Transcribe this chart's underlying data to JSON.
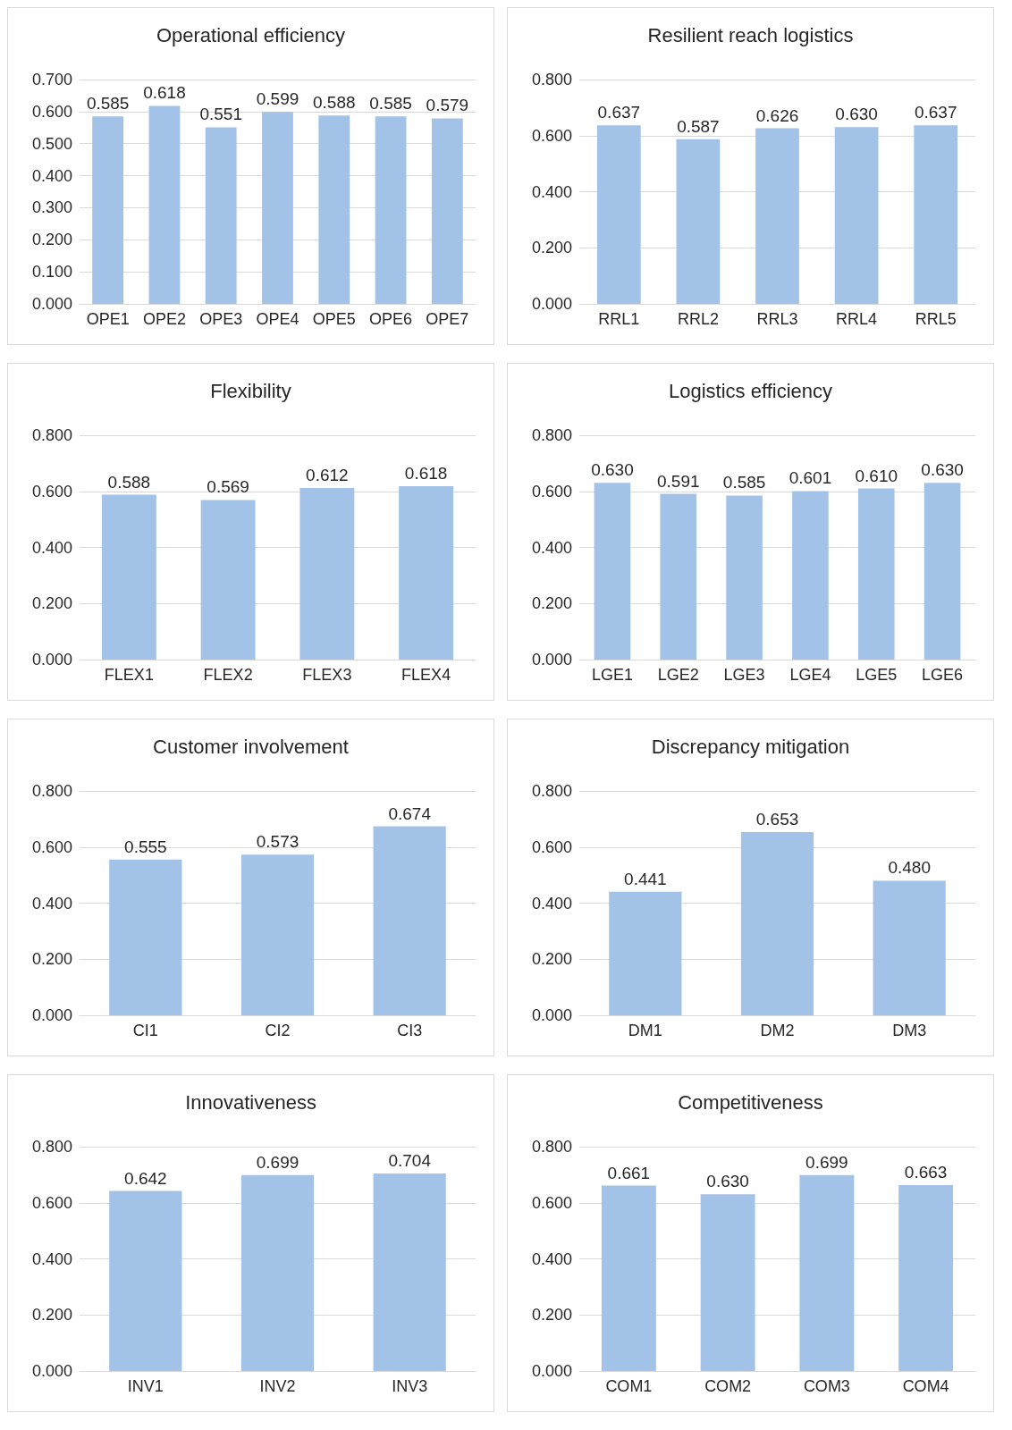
{
  "chart_data": [
    {
      "type": "bar",
      "title": "Operational efficiency",
      "categories": [
        "OPE1",
        "OPE2",
        "OPE3",
        "OPE4",
        "OPE5",
        "OPE6",
        "OPE7"
      ],
      "values": [
        0.585,
        0.618,
        0.551,
        0.599,
        0.588,
        0.585,
        0.579
      ],
      "value_labels": [
        "0.585",
        "0.618",
        "0.551",
        "0.599",
        "0.588",
        "0.585",
        "0.579"
      ],
      "color": "#a3c2e8",
      "ylim": [
        0,
        0.7
      ],
      "yticks": [
        {
          "value": 0,
          "label": "0.000"
        },
        {
          "value": 0.1,
          "label": "0.100"
        },
        {
          "value": 0.2,
          "label": "0.200"
        },
        {
          "value": 0.3,
          "label": "0.300"
        },
        {
          "value": 0.4,
          "label": "0.400"
        },
        {
          "value": 0.5,
          "label": "0.500"
        },
        {
          "value": 0.6,
          "label": "0.600"
        },
        {
          "value": 0.7,
          "label": "0.700"
        }
      ],
      "grid": "y"
    },
    {
      "type": "bar",
      "title": "Resilient reach logistics",
      "categories": [
        "RRL1",
        "RRL2",
        "RRL3",
        "RRL4",
        "RRL5"
      ],
      "values": [
        0.637,
        0.587,
        0.626,
        0.63,
        0.637
      ],
      "value_labels": [
        "0.637",
        "0.587",
        "0.626",
        "0.630",
        "0.637"
      ],
      "color": "#a3c2e8",
      "ylim": [
        0,
        0.8
      ],
      "yticks": [
        {
          "value": 0,
          "label": "0.000"
        },
        {
          "value": 0.2,
          "label": "0.200"
        },
        {
          "value": 0.4,
          "label": "0.400"
        },
        {
          "value": 0.6,
          "label": "0.600"
        },
        {
          "value": 0.8,
          "label": "0.800"
        }
      ],
      "grid": "y"
    },
    {
      "type": "bar",
      "title": "Flexibility",
      "categories": [
        "FLEX1",
        "FLEX2",
        "FLEX3",
        "FLEX4"
      ],
      "values": [
        0.588,
        0.569,
        0.612,
        0.618
      ],
      "value_labels": [
        "0.588",
        "0.569",
        "0.612",
        "0.618"
      ],
      "color": "#a3c2e8",
      "ylim": [
        0,
        0.8
      ],
      "yticks": [
        {
          "value": 0,
          "label": "0.000"
        },
        {
          "value": 0.2,
          "label": "0.200"
        },
        {
          "value": 0.4,
          "label": "0.400"
        },
        {
          "value": 0.6,
          "label": "0.600"
        },
        {
          "value": 0.8,
          "label": "0.800"
        }
      ],
      "grid": "y"
    },
    {
      "type": "bar",
      "title": "Logistics efficiency",
      "categories": [
        "LGE1",
        "LGE2",
        "LGE3",
        "LGE4",
        "LGE5",
        "LGE6"
      ],
      "values": [
        0.63,
        0.591,
        0.585,
        0.601,
        0.61,
        0.63
      ],
      "value_labels": [
        "0.630",
        "0.591",
        "0.585",
        "0.601",
        "0.610",
        "0.630"
      ],
      "color": "#a3c2e8",
      "ylim": [
        0,
        0.8
      ],
      "yticks": [
        {
          "value": 0,
          "label": "0.000"
        },
        {
          "value": 0.2,
          "label": "0.200"
        },
        {
          "value": 0.4,
          "label": "0.400"
        },
        {
          "value": 0.6,
          "label": "0.600"
        },
        {
          "value": 0.8,
          "label": "0.800"
        }
      ],
      "grid": "y"
    },
    {
      "type": "bar",
      "title": "Customer involvement",
      "categories": [
        "CI1",
        "CI2",
        "CI3"
      ],
      "values": [
        0.555,
        0.573,
        0.674
      ],
      "value_labels": [
        "0.555",
        "0.573",
        "0.674"
      ],
      "color": "#a3c2e8",
      "ylim": [
        0,
        0.8
      ],
      "yticks": [
        {
          "value": 0,
          "label": "0.000"
        },
        {
          "value": 0.2,
          "label": "0.200"
        },
        {
          "value": 0.4,
          "label": "0.400"
        },
        {
          "value": 0.6,
          "label": "0.600"
        },
        {
          "value": 0.8,
          "label": "0.800"
        }
      ],
      "grid": "y"
    },
    {
      "type": "bar",
      "title": "Discrepancy mitigation",
      "categories": [
        "DM1",
        "DM2",
        "DM3"
      ],
      "values": [
        0.441,
        0.653,
        0.48
      ],
      "value_labels": [
        "0.441",
        "0.653",
        "0.480"
      ],
      "color": "#a3c2e8",
      "ylim": [
        0,
        0.8
      ],
      "yticks": [
        {
          "value": 0,
          "label": "0.000"
        },
        {
          "value": 0.2,
          "label": "0.200"
        },
        {
          "value": 0.4,
          "label": "0.400"
        },
        {
          "value": 0.6,
          "label": "0.600"
        },
        {
          "value": 0.8,
          "label": "0.800"
        }
      ],
      "grid": "y"
    },
    {
      "type": "bar",
      "title": "Innovativeness",
      "categories": [
        "INV1",
        "INV2",
        "INV3"
      ],
      "values": [
        0.642,
        0.699,
        0.704
      ],
      "value_labels": [
        "0.642",
        "0.699",
        "0.704"
      ],
      "color": "#a3c2e8",
      "ylim": [
        0,
        0.8
      ],
      "yticks": [
        {
          "value": 0,
          "label": "0.000"
        },
        {
          "value": 0.2,
          "label": "0.200"
        },
        {
          "value": 0.4,
          "label": "0.400"
        },
        {
          "value": 0.6,
          "label": "0.600"
        },
        {
          "value": 0.8,
          "label": "0.800"
        }
      ],
      "grid": "y"
    },
    {
      "type": "bar",
      "title": "Competitiveness",
      "categories": [
        "COM1",
        "COM2",
        "COM3",
        "COM4"
      ],
      "values": [
        0.661,
        0.63,
        0.699,
        0.663
      ],
      "value_labels": [
        "0.661",
        "0.630",
        "0.699",
        "0.663"
      ],
      "color": "#a3c2e8",
      "ylim": [
        0,
        0.8
      ],
      "yticks": [
        {
          "value": 0,
          "label": "0.000"
        },
        {
          "value": 0.2,
          "label": "0.200"
        },
        {
          "value": 0.4,
          "label": "0.400"
        },
        {
          "value": 0.6,
          "label": "0.600"
        },
        {
          "value": 0.8,
          "label": "0.800"
        }
      ],
      "grid": "y"
    }
  ]
}
